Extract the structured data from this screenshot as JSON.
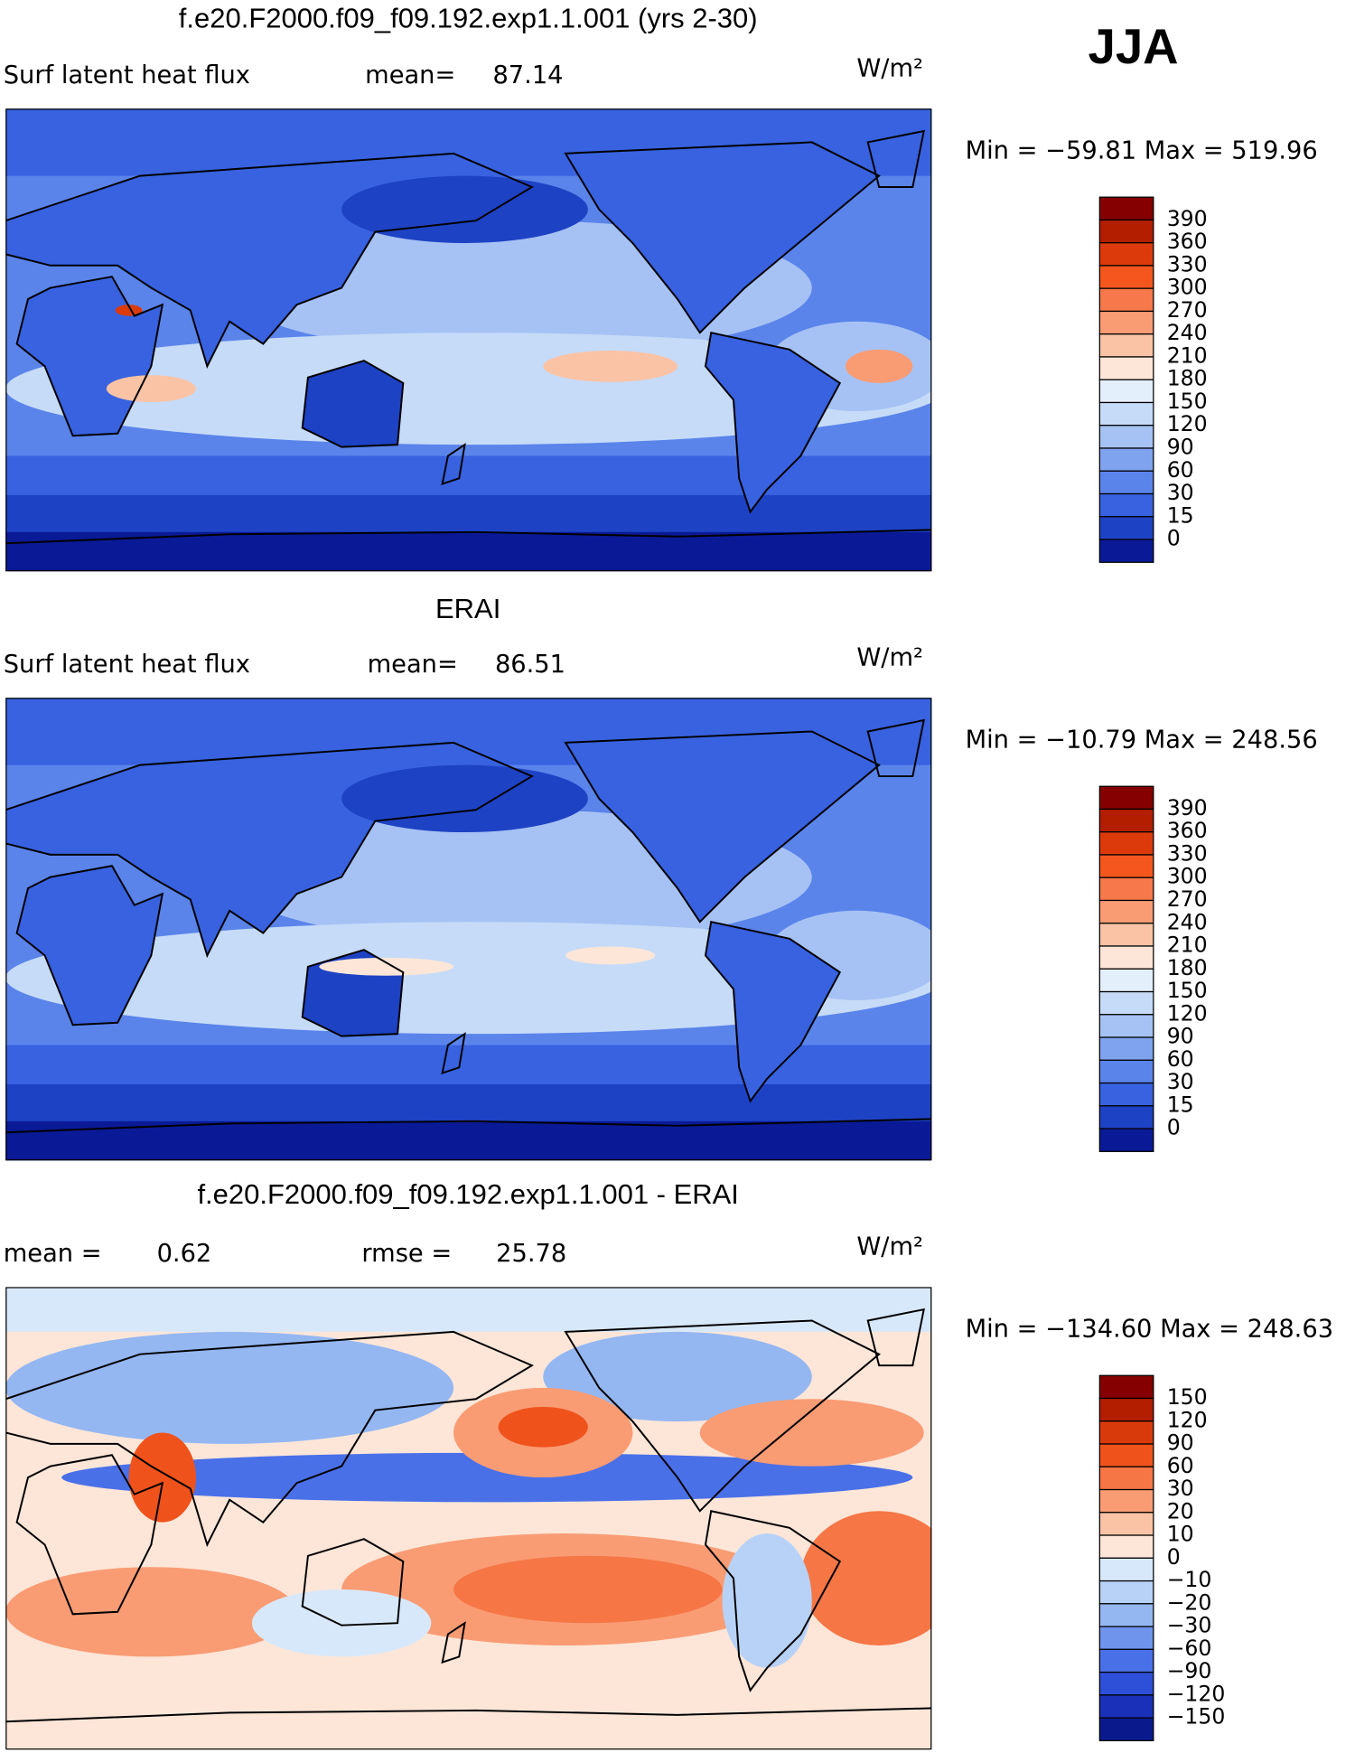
{
  "header": {
    "season": "JJA"
  },
  "panels": [
    {
      "title": "f.e20.F2000.f09_f09.192.exp1.1.001 (yrs 2-30)",
      "label": "Surf latent heat flux",
      "mean_label": "mean=",
      "mean": 87.14,
      "units": "W/m²",
      "min_label": "Min =",
      "min": "−59.81",
      "max_label": "Max =",
      "max": 519.96,
      "colorbar": {
        "labels": [
          "390",
          "360",
          "330",
          "300",
          "270",
          "240",
          "210",
          "180",
          "150",
          "120",
          "90",
          "60",
          "30",
          "15",
          "0"
        ],
        "colors": [
          "#850000",
          "#b31e00",
          "#dd3a0c",
          "#f4561e",
          "#f7784a",
          "#f99c74",
          "#fbc3a6",
          "#fde6d8",
          "#e4effc",
          "#c6dbf8",
          "#a6c2f4",
          "#7fa3ef",
          "#5a84ea",
          "#3862e0",
          "#1e42c4",
          "#0a1a96"
        ]
      }
    },
    {
      "title": "ERAI",
      "label": "Surf latent heat flux",
      "mean_label": "mean=",
      "mean": 86.51,
      "units": "W/m²",
      "min_label": "Min =",
      "min": "−10.79",
      "max_label": "Max =",
      "max": 248.56,
      "colorbar": {
        "labels": [
          "390",
          "360",
          "330",
          "300",
          "270",
          "240",
          "210",
          "180",
          "150",
          "120",
          "90",
          "60",
          "30",
          "15",
          "0"
        ],
        "colors": [
          "#850000",
          "#b31e00",
          "#dd3a0c",
          "#f4561e",
          "#f7784a",
          "#f99c74",
          "#fbc3a6",
          "#fde6d8",
          "#e4effc",
          "#c6dbf8",
          "#a6c2f4",
          "#7fa3ef",
          "#5a84ea",
          "#3862e0",
          "#1e42c4",
          "#0a1a96"
        ]
      }
    },
    {
      "title": "f.e20.F2000.f09_f09.192.exp1.1.001 - ERAI",
      "mean_label": "mean =",
      "mean": 0.62,
      "rmse_label": "rmse =",
      "rmse": 25.78,
      "units": "W/m²",
      "min_label": "Min =",
      "min": "−134.60",
      "max_label": "Max =",
      "max": 248.63,
      "colorbar": {
        "labels": [
          "150",
          "120",
          "90",
          "60",
          "30",
          "20",
          "10",
          "0",
          "−10",
          "−20",
          "−30",
          "−60",
          "−90",
          "−120",
          "−150"
        ],
        "colors": [
          "#850000",
          "#b31e00",
          "#d93a0c",
          "#f0521c",
          "#f67646",
          "#f99c74",
          "#fbc3a6",
          "#fde6d8",
          "#d8e8fb",
          "#b8d2f7",
          "#94b7f2",
          "#6f94ec",
          "#4a70e8",
          "#2e4fd8",
          "#1a30b8",
          "#0a1a8c"
        ]
      }
    }
  ]
}
